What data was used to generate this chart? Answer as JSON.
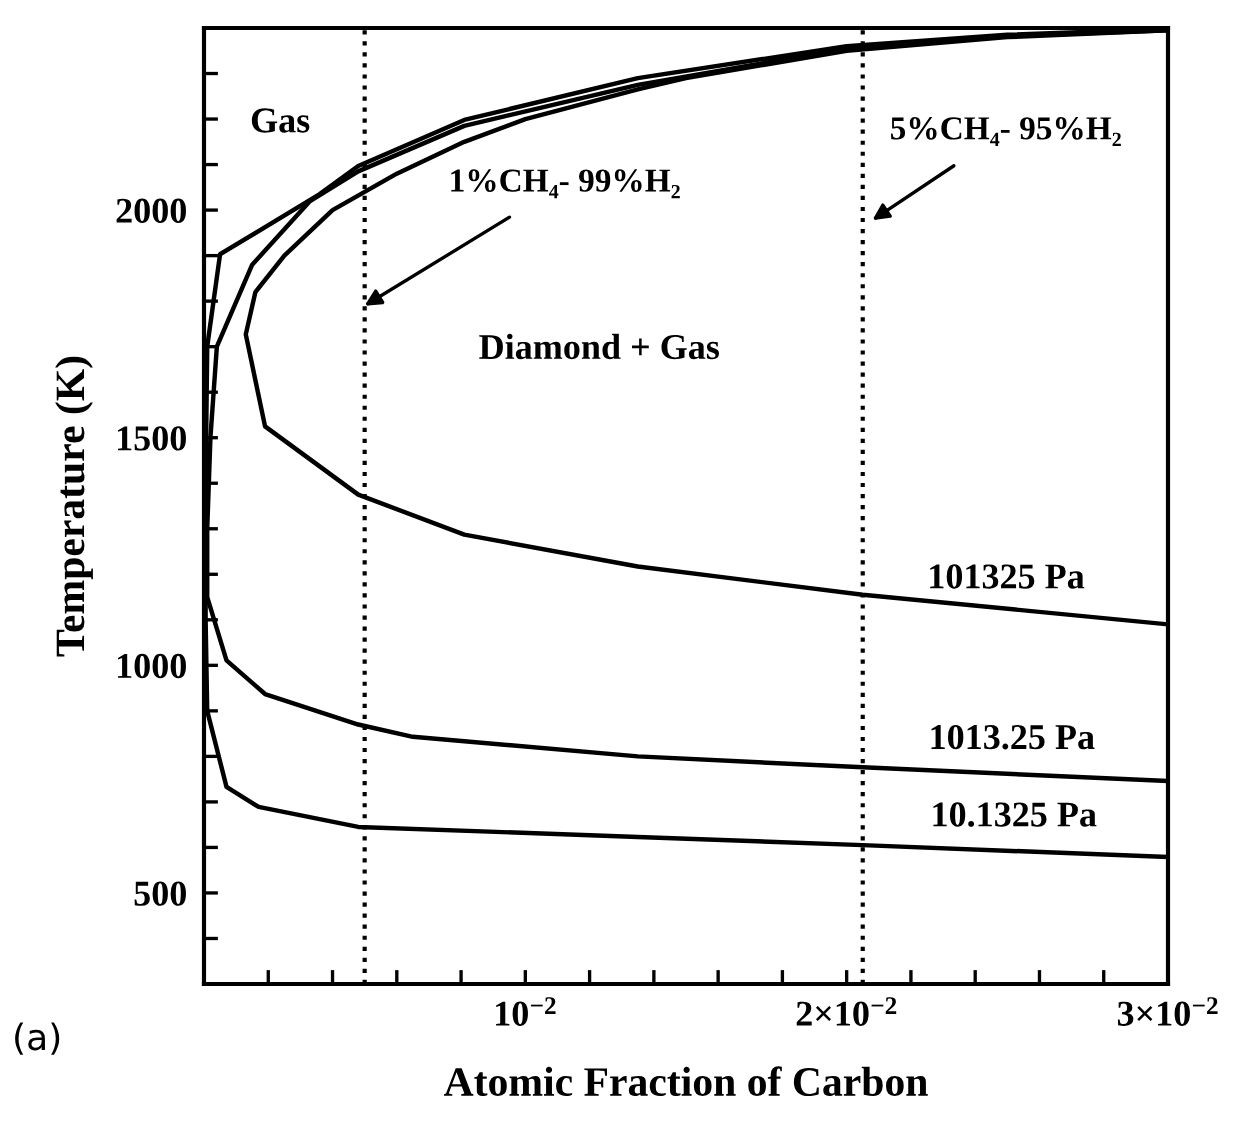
{
  "chart_data": {
    "type": "line",
    "xlabel": "Atomic Fraction of Carbon",
    "ylabel": "Temperature (K)",
    "xlim": [
      0,
      0.03
    ],
    "ylim": [
      300,
      2400
    ],
    "xticks": [
      {
        "value": 0.002,
        "label": null
      },
      {
        "value": 0.004,
        "label": null
      },
      {
        "value": 0.006,
        "label": null
      },
      {
        "value": 0.008,
        "label": null
      },
      {
        "value": 0.01,
        "label": "10$^{−2}$"
      },
      {
        "value": 0.012,
        "label": null
      },
      {
        "value": 0.014,
        "label": null
      },
      {
        "value": 0.016,
        "label": null
      },
      {
        "value": 0.018,
        "label": null
      },
      {
        "value": 0.02,
        "label": "2×10$^{−2}$"
      },
      {
        "value": 0.022,
        "label": null
      },
      {
        "value": 0.024,
        "label": null
      },
      {
        "value": 0.026,
        "label": null
      },
      {
        "value": 0.028,
        "label": null
      },
      {
        "value": 0.03,
        "label": "3×10$^{−2}$"
      }
    ],
    "yticks": [
      {
        "value": 400,
        "label": null
      },
      500,
      {
        "value": 600,
        "label": null
      },
      {
        "value": 700,
        "label": null
      },
      {
        "value": 800,
        "label": null
      },
      {
        "value": 900,
        "label": null
      },
      1000,
      {
        "value": 1100,
        "label": null
      },
      {
        "value": 1200,
        "label": null
      },
      {
        "value": 1300,
        "label": null
      },
      {
        "value": 1400,
        "label": null
      },
      1500,
      {
        "value": 1600,
        "label": null
      },
      {
        "value": 1700,
        "label": null
      },
      {
        "value": 1800,
        "label": null
      },
      {
        "value": 1900,
        "label": null
      },
      2000,
      {
        "value": 2100,
        "label": null
      },
      {
        "value": 2200,
        "label": null
      },
      {
        "value": 2300,
        "label": null
      }
    ],
    "grid": false,
    "legend": false,
    "marker": "none",
    "line_style": "solid",
    "series": [
      {
        "color": "#000000",
        "x": [
          0.03,
          0.025,
          0.02,
          0.015,
          0.0135,
          0.01,
          0.0081,
          0.006,
          0.004,
          0.0025,
          0.0016,
          0.0013,
          0.0019,
          0.0048,
          0.0081,
          0.0135,
          0.0205,
          0.03
        ],
        "values": [
          2395,
          2380,
          2350,
          2290,
          2265,
          2200,
          2150,
          2080,
          2000,
          1900,
          1820,
          1727,
          1525,
          1375,
          1287,
          1217,
          1155,
          1090
        ]
      },
      {
        "color": "#000000",
        "x": [
          0.03,
          0.025,
          0.02,
          0.0135,
          0.0081,
          0.0048,
          0.0033,
          0.0015,
          0.0004,
          0.0002,
          0.0001,
          0.0001,
          0.0007,
          0.0019,
          0.0048,
          0.0065,
          0.0135,
          0.0205,
          0.03
        ],
        "values": [
          2395,
          2382,
          2355,
          2275,
          2185,
          2085,
          2020,
          1880,
          1700,
          1500,
          1300,
          1150,
          1011,
          937,
          870,
          843,
          800,
          776,
          746
        ]
      },
      {
        "color": "#000000",
        "x": [
          0.03,
          0.025,
          0.02,
          0.0135,
          0.0081,
          0.0048,
          0.0036,
          0.0005,
          0.0001,
          5e-05,
          5e-05,
          0.0001,
          0.0007,
          0.0017,
          0.0048,
          0.0135,
          0.0205,
          0.03
        ],
        "values": [
          2398,
          2385,
          2360,
          2290,
          2198,
          2097,
          2035,
          1903,
          1700,
          1400,
          1100,
          900,
          733,
          689,
          645,
          623,
          605,
          579
        ]
      }
    ],
    "ref_lines": [
      {
        "axis": "x",
        "value": 0.005,
        "color": "#000000",
        "line_style": "dotted"
      },
      {
        "axis": "x",
        "value": 0.0205,
        "color": "#000000",
        "line_style": "dotted"
      }
    ],
    "annotations": [
      "Gas",
      "Diamond + Gas",
      {
        "text": "1%CH₄- 99%H₂",
        "x": 0.005,
        "y": 1790
      },
      {
        "text": "5%CH₄- 95%H₂",
        "x": 0.0208,
        "y": 1978
      },
      "101325 Pa",
      "1013.25 Pa",
      "10.1325 Pa",
      "(a)"
    ]
  }
}
